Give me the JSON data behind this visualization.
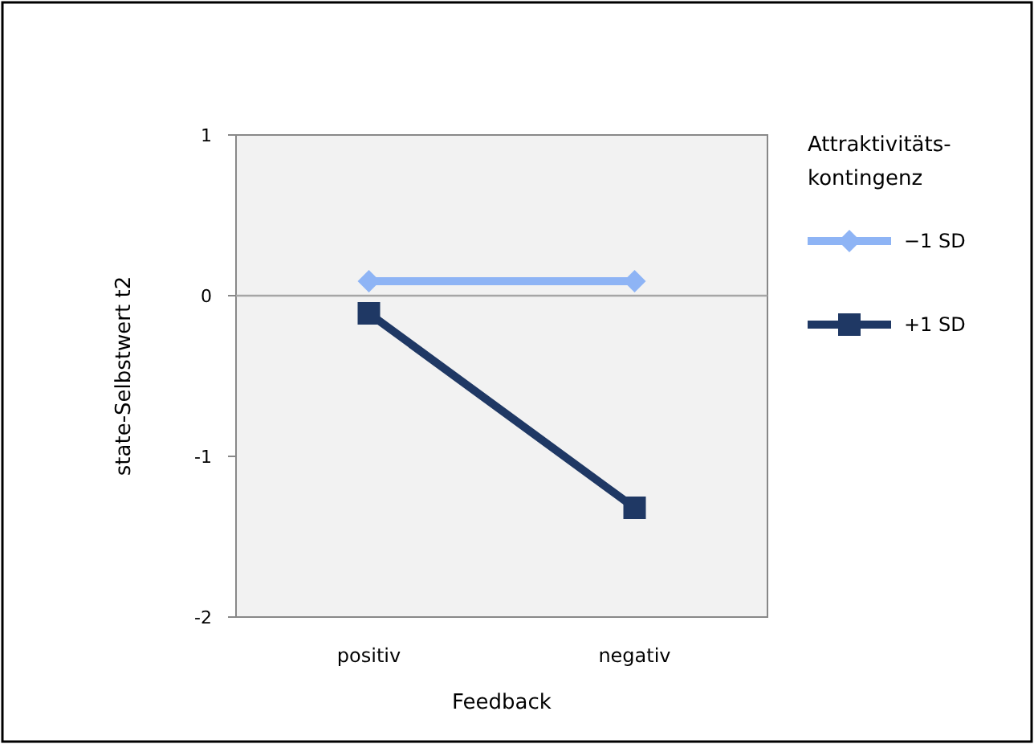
{
  "chart_data": {
    "type": "line",
    "xlabel": "Feedback",
    "ylabel": "state-Selbstwert t2",
    "legend_title": "Attraktivitäts-\nkontingenz",
    "categories": [
      "positiv",
      "negativ"
    ],
    "ylim": [
      -2,
      1
    ],
    "yticks": [
      -2,
      -1,
      0,
      1
    ],
    "grid": false,
    "legend": "right",
    "ref_lines": [
      {
        "axis": "y",
        "value": 0,
        "color": "#a6a6a6"
      }
    ],
    "series": [
      {
        "name": "−1 SD",
        "color": "#8eb4f5",
        "values": [
          0.09,
          0.09
        ],
        "marker": "diamond"
      },
      {
        "name": "+1 SD",
        "color": "#1f3864",
        "values": [
          -0.11,
          -1.32
        ],
        "marker": "square"
      }
    ]
  }
}
